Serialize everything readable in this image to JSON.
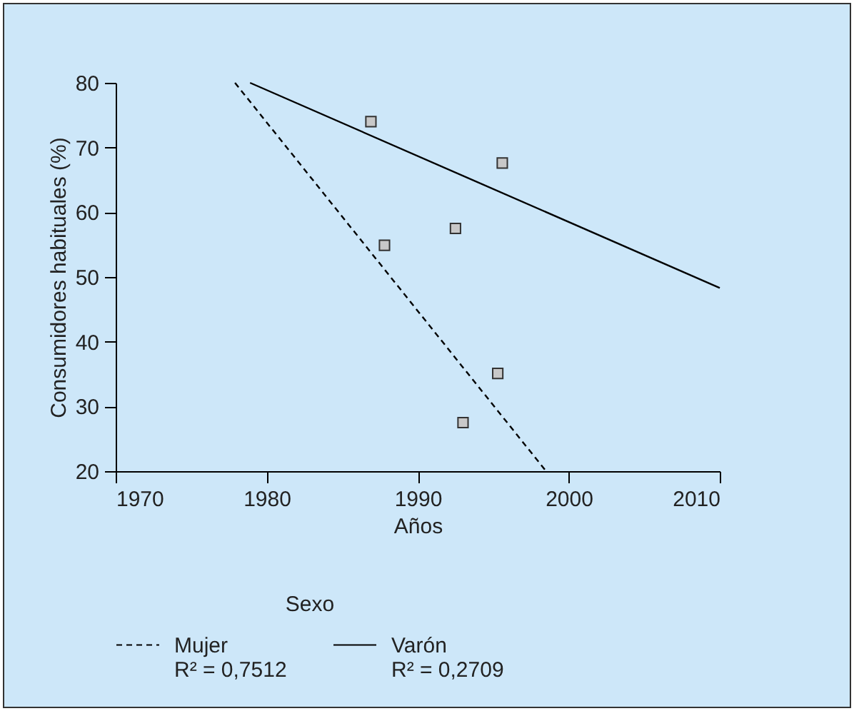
{
  "chart_data": {
    "type": "scatter",
    "xlabel": "Años",
    "ylabel": "Consumidores habituales (%)",
    "legend_title": "Sexo",
    "legend": "bottom",
    "grid": false,
    "marker": "square",
    "xlim": [
      1970,
      2010
    ],
    "xticks": [
      1970,
      1980,
      1990,
      2000,
      2010
    ],
    "ylim": [
      20,
      80
    ],
    "yticks": [
      20,
      30,
      40,
      50,
      60,
      70,
      80
    ],
    "annotations": [
      "R² = 0,7512",
      "R² = 0,2709"
    ],
    "series": [
      {
        "type": "scatter",
        "color": "#c8c8c8",
        "x": [
          1986.9,
          1987.8,
          1992.5,
          1995.6,
          1995.3,
          1993.0
        ],
        "values": [
          74.0,
          54.9,
          57.5,
          67.6,
          35.1,
          27.5
        ]
      },
      {
        "name": "Mujer",
        "type": "line",
        "line_style": "dashed",
        "marker": "none",
        "color": "#000000",
        "x": [
          1977.9,
          1998.5
        ],
        "values": [
          80,
          20
        ]
      },
      {
        "name": "Varón",
        "type": "line",
        "line_style": "solid",
        "marker": "none",
        "color": "#000000",
        "x": [
          1978.9,
          2010
        ],
        "values": [
          80,
          48.3
        ]
      }
    ]
  }
}
